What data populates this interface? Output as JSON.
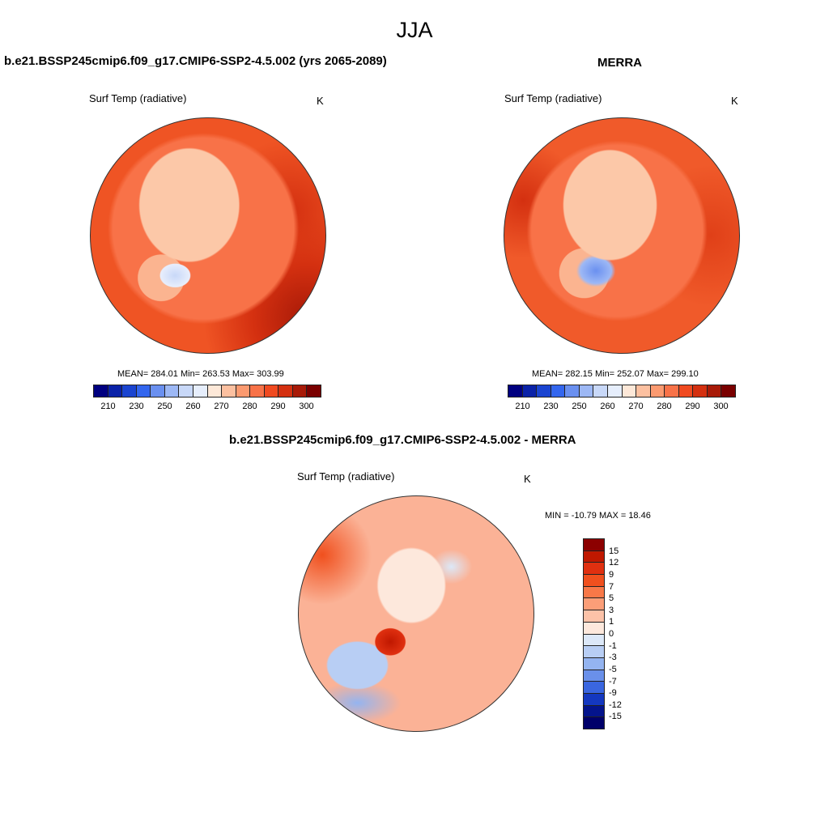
{
  "title": "JJA",
  "panels": [
    {
      "title": "b.e21.BSSP245cmip6.f09_g17.CMIP6-SSP2-4.5.002 (yrs 2065-2089)",
      "variable": "Surf Temp (radiative)",
      "units": "K",
      "stats": "MEAN= 284.01  Min= 263.53  Max= 303.99"
    },
    {
      "title": "MERRA",
      "variable": "Surf Temp (radiative)",
      "units": "K",
      "stats": "MEAN= 282.15  Min= 252.07  Max= 299.10"
    }
  ],
  "abs_colorbar": {
    "labels": [
      "210",
      "230",
      "250",
      "260",
      "270",
      "280",
      "290",
      "300"
    ],
    "colors": [
      "#000080",
      "#0a22a8",
      "#1a44d0",
      "#3366ee",
      "#6a90f0",
      "#9db8f5",
      "#c8d8f8",
      "#e6eefc",
      "#fde8d8",
      "#fcc0a0",
      "#fb9a70",
      "#f87248",
      "#f04a20",
      "#d43010",
      "#a81a08",
      "#7a0000"
    ]
  },
  "diff_panel": {
    "title": "b.e21.BSSP245cmip6.f09_g17.CMIP6-SSP2-4.5.002 - MERRA",
    "variable": "Surf Temp (radiative)",
    "units": "K",
    "stats": "MIN = -10.79 MAX =  18.46"
  },
  "diff_colorbar": {
    "labels": [
      "15",
      "12",
      "9",
      "7",
      "5",
      "3",
      "1",
      "0",
      "-1",
      "-3",
      "-5",
      "-7",
      "-9",
      "-12",
      "-15"
    ],
    "colors": [
      "#8c0000",
      "#c01800",
      "#e03010",
      "#f0501e",
      "#f87848",
      "#fb9e78",
      "#fcc2a8",
      "#fde8dc",
      "#dce8f8",
      "#b8cef4",
      "#94b4f0",
      "#6a90ea",
      "#3a66e0",
      "#1438c0",
      "#04148c",
      "#00006a"
    ]
  }
}
